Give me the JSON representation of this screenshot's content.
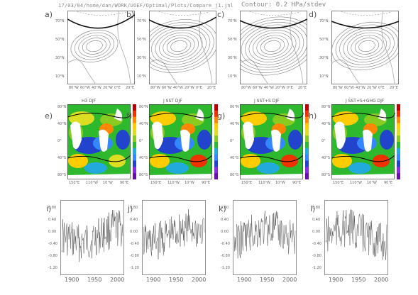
{
  "header": {
    "path": "17/03/04/home/dan/WORK/UOEF/Optimal/Plots/Compare_j1.jnl",
    "contour": "Contour: 0.2 HPa/stdev"
  },
  "row1": {
    "panels": [
      {
        "label": "a)",
        "lats": [
          "70°N",
          "50°N",
          "30°N",
          "10°N"
        ],
        "lons": [
          "80°W",
          "60°W",
          "40°W",
          "20°W",
          "0°E",
          "20°E"
        ]
      },
      {
        "label": "b)",
        "lats": [
          "70°N",
          "50°N",
          "30°N",
          "10°N"
        ],
        "lons": [
          "80°W",
          "60°W",
          "40°W",
          "20°W",
          "0°E",
          "20°E"
        ]
      },
      {
        "label": "c)",
        "lats": [
          "70°N",
          "50°N",
          "30°N",
          "10°N"
        ],
        "lons": [
          "80°W",
          "60°W",
          "40°W",
          "20°W",
          "0°E",
          "20°E"
        ]
      },
      {
        "label": "d)",
        "lats": [
          "70°N",
          "50°N",
          "30°N",
          "10°N"
        ],
        "lons": [
          "80°W",
          "60°W",
          "40°W",
          "20°W",
          "0°E",
          "20°E"
        ]
      }
    ]
  },
  "row2": {
    "panels": [
      {
        "label": "e)",
        "title": "H3  DJF"
      },
      {
        "label": "f)",
        "title": "J  SST  DJF"
      },
      {
        "label": "g)",
        "title": "J  SST+S  DJF"
      },
      {
        "label": "h)",
        "title": "J  SST+S+GHG  DJF"
      }
    ],
    "lats": [
      "80°N",
      "40°N",
      "0°",
      "40°S",
      "80°S"
    ],
    "lons": [
      "150°E",
      "110°W",
      "10°W",
      "90°E"
    ]
  },
  "row3": {
    "panels": [
      {
        "label": "i)"
      },
      {
        "label": "j)"
      },
      {
        "label": "k)"
      },
      {
        "label": "l)"
      }
    ],
    "yticks": [
      "0.80",
      "0.40",
      "0.00",
      "-0.40",
      "-0.80",
      "-1.20"
    ],
    "xticks": [
      "1900",
      "1950",
      "2000"
    ]
  }
}
